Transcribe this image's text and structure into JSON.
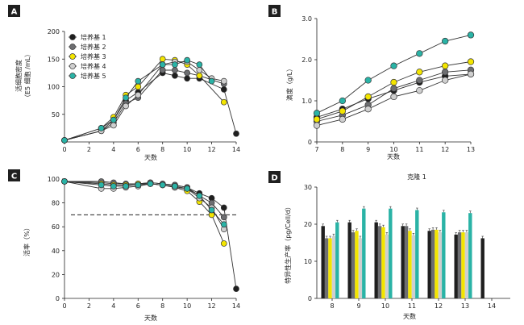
{
  "colors": {
    "black": "#1f1f1f",
    "gray": "#6d6e71",
    "yellow": "#f3e500",
    "light_gray": "#cfcfcf",
    "teal": "#2ab3a6",
    "label_bg": "#1f1f1f"
  },
  "chart_data": [
    {
      "panel": "A",
      "type": "line",
      "ylabel": [
        "活细胞密度",
        "（E5 细胞 /mL）"
      ],
      "xlabel": "天数",
      "xlim": [
        0,
        14
      ],
      "ylim": [
        0,
        200
      ],
      "xticks": [
        0,
        2,
        4,
        6,
        8,
        10,
        12,
        14
      ],
      "yticks": [
        50,
        100,
        150,
        200
      ],
      "legend": "top-left",
      "series": [
        {
          "name": "培养基 1",
          "color": "black",
          "x": [
            0,
            3,
            4,
            5,
            6,
            8,
            9,
            10,
            11,
            13,
            14
          ],
          "y": [
            3,
            20,
            40,
            75,
            90,
            125,
            120,
            115,
            115,
            95,
            15
          ]
        },
        {
          "name": "培养基 2",
          "color": "gray",
          "x": [
            0,
            3,
            4,
            5,
            6,
            8,
            9,
            10,
            11,
            13
          ],
          "y": [
            3,
            20,
            35,
            70,
            80,
            130,
            130,
            125,
            120,
            105
          ]
        },
        {
          "name": "培养基 3",
          "color": "yellow",
          "x": [
            0,
            3,
            4,
            5,
            6,
            8,
            9,
            10,
            11,
            13
          ],
          "y": [
            3,
            25,
            45,
            85,
            100,
            150,
            148,
            140,
            120,
            72
          ]
        },
        {
          "name": "培养基 4",
          "color": "light_gray",
          "x": [
            0,
            3,
            4,
            5,
            6,
            8,
            9,
            10,
            11,
            12,
            13
          ],
          "y": [
            3,
            20,
            30,
            65,
            85,
            140,
            145,
            145,
            130,
            115,
            110
          ]
        },
        {
          "name": "培养基 5",
          "color": "teal",
          "x": [
            0,
            3,
            4,
            5,
            6,
            8,
            9,
            10,
            11,
            12
          ],
          "y": [
            3,
            25,
            40,
            80,
            110,
            140,
            140,
            148,
            140,
            110
          ]
        }
      ]
    },
    {
      "panel": "B",
      "type": "line",
      "ylabel": "滴度（g/L）",
      "xlabel": "天数",
      "xlim": [
        7,
        13
      ],
      "ylim": [
        0,
        3.0
      ],
      "xticks": [
        7,
        8,
        9,
        10,
        11,
        12,
        13
      ],
      "yticks": [
        "0",
        "1.0",
        "2.0",
        "3.0"
      ],
      "series": [
        {
          "color": "black",
          "x": [
            7,
            8,
            9,
            10,
            11,
            12,
            13
          ],
          "y": [
            0.6,
            0.8,
            1.05,
            1.25,
            1.45,
            1.6,
            1.65
          ]
        },
        {
          "color": "gray",
          "x": [
            7,
            8,
            9,
            10,
            11,
            12,
            13
          ],
          "y": [
            0.5,
            0.65,
            0.9,
            1.3,
            1.5,
            1.7,
            1.75
          ]
        },
        {
          "color": "yellow",
          "x": [
            7,
            8,
            9,
            10,
            11,
            12,
            13
          ],
          "y": [
            0.55,
            0.75,
            1.1,
            1.45,
            1.7,
            1.85,
            1.95
          ]
        },
        {
          "color": "light_gray",
          "x": [
            7,
            8,
            9,
            10,
            11,
            12,
            13
          ],
          "y": [
            0.4,
            0.55,
            0.8,
            1.1,
            1.25,
            1.5,
            1.65
          ]
        },
        {
          "color": "teal",
          "x": [
            7,
            8,
            9,
            10,
            11,
            12,
            13
          ],
          "y": [
            0.7,
            1.0,
            1.5,
            1.85,
            2.15,
            2.45,
            2.6
          ]
        }
      ]
    },
    {
      "panel": "C",
      "type": "line",
      "ylabel": "活率（%）",
      "xlabel": "天数",
      "xlim": [
        0,
        14
      ],
      "ylim": [
        0,
        100
      ],
      "xticks": [
        0,
        2,
        4,
        6,
        8,
        10,
        12,
        14
      ],
      "yticks": [
        0,
        20,
        40,
        60,
        80,
        100
      ],
      "threshold": 70,
      "series": [
        {
          "color": "black",
          "x": [
            0,
            3,
            4,
            5,
            6,
            7,
            8,
            9,
            10,
            11,
            12,
            13,
            14
          ],
          "y": [
            98,
            97,
            96,
            96,
            96,
            97,
            96,
            95,
            93,
            88,
            84,
            76,
            8
          ]
        },
        {
          "color": "gray",
          "x": [
            0,
            3,
            4,
            5,
            6,
            7,
            8,
            9,
            10,
            11,
            12,
            13
          ],
          "y": [
            98,
            98,
            97,
            96,
            96,
            97,
            96,
            95,
            93,
            86,
            80,
            68
          ]
        },
        {
          "color": "yellow",
          "x": [
            0,
            3,
            4,
            5,
            6,
            7,
            8,
            9,
            10,
            11,
            12,
            13
          ],
          "y": [
            98,
            96,
            95,
            95,
            96,
            96,
            95,
            93,
            90,
            81,
            70,
            46
          ]
        },
        {
          "color": "light_gray",
          "x": [
            0,
            3,
            4,
            5,
            6,
            7,
            8,
            9,
            10,
            11,
            12,
            13
          ],
          "y": [
            98,
            92,
            92,
            93,
            94,
            96,
            95,
            93,
            92,
            84,
            76,
            58
          ]
        },
        {
          "color": "teal",
          "x": [
            0,
            3,
            4,
            5,
            6,
            7,
            8,
            9,
            10,
            11,
            12,
            13
          ],
          "y": [
            98,
            95,
            94,
            94,
            95,
            96,
            95,
            94,
            92,
            86,
            74,
            62
          ]
        }
      ]
    },
    {
      "panel": "D",
      "type": "bar",
      "title": "克隆 1",
      "ylabel": "特异性生产率（pg/Cell/d）",
      "xlabel": "天数",
      "ylim": [
        0,
        30
      ],
      "yticks": [
        0,
        10,
        20,
        30
      ],
      "categories": [
        "8",
        "9",
        "10",
        "11",
        "12",
        "13",
        "14"
      ],
      "series": [
        {
          "color": "black",
          "values": [
            19.5,
            20.5,
            20.5,
            19.5,
            18.2,
            17.2,
            16.2
          ]
        },
        {
          "color": "gray",
          "values": [
            16.2,
            17.8,
            19.5,
            19.5,
            18.5,
            17.8,
            null
          ]
        },
        {
          "color": "yellow",
          "values": [
            16.2,
            18.2,
            19.2,
            18.2,
            18.5,
            17.8,
            null
          ]
        },
        {
          "color": "light_gray",
          "values": [
            16.8,
            16.2,
            17.2,
            17.0,
            17.8,
            17.8,
            null
          ]
        },
        {
          "color": "teal",
          "values": [
            20.5,
            24.2,
            24.2,
            23.8,
            23.2,
            23.0,
            null
          ]
        }
      ]
    }
  ]
}
